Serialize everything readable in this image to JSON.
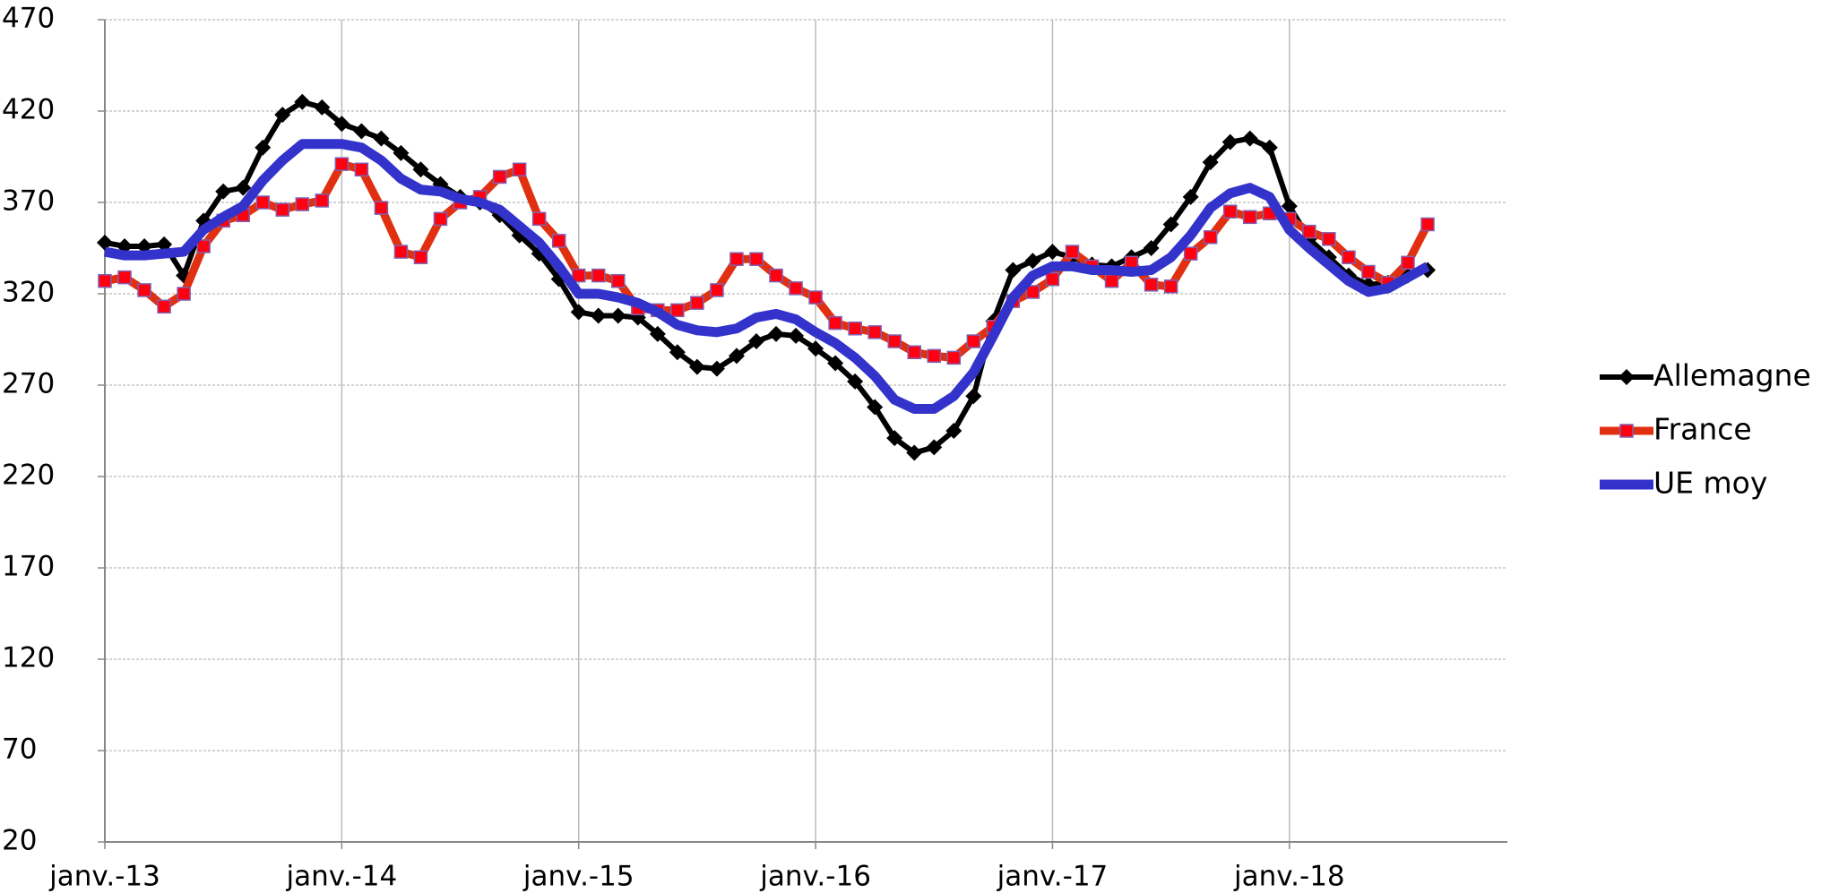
{
  "chart_data": {
    "type": "line",
    "categories": [
      "janv.-13",
      null,
      null,
      null,
      null,
      null,
      null,
      null,
      null,
      null,
      null,
      null,
      "janv.-14",
      null,
      null,
      null,
      null,
      null,
      null,
      null,
      null,
      null,
      null,
      null,
      "janv.-15",
      null,
      null,
      null,
      null,
      null,
      null,
      null,
      null,
      null,
      null,
      null,
      "janv.-16",
      null,
      null,
      null,
      null,
      null,
      null,
      null,
      null,
      null,
      null,
      null,
      "janv.-17",
      null,
      null,
      null,
      null,
      null,
      null,
      null,
      null,
      null,
      null,
      null,
      "janv.-18",
      null,
      null,
      null,
      null,
      null,
      null,
      null
    ],
    "series": [
      {
        "name": "Allemagne",
        "color": "#000000",
        "marker": "diamond",
        "values": [
          348,
          346,
          346,
          347,
          330,
          360,
          376,
          378,
          400,
          418,
          425,
          422,
          413,
          409,
          405,
          397,
          388,
          380,
          373,
          370,
          363,
          352,
          342,
          328,
          310,
          308,
          308,
          307,
          298,
          288,
          280,
          279,
          286,
          294,
          298,
          297,
          290,
          282,
          272,
          258,
          241,
          233,
          236,
          245,
          264,
          305,
          333,
          338,
          343,
          340,
          336,
          335,
          340,
          345,
          358,
          373,
          392,
          403,
          405,
          400,
          368,
          350,
          340,
          330,
          325,
          326,
          330,
          333
        ]
      },
      {
        "name": "France",
        "color": "#e03010",
        "marker": "square",
        "marker_color": "#ff0010",
        "values": [
          327,
          329,
          322,
          313,
          320,
          346,
          360,
          363,
          370,
          366,
          369,
          371,
          391,
          388,
          367,
          343,
          340,
          361,
          370,
          373,
          384,
          388,
          361,
          349,
          330,
          330,
          327,
          312,
          311,
          311,
          315,
          322,
          339,
          339,
          330,
          323,
          318,
          304,
          301,
          299,
          294,
          288,
          286,
          285,
          294,
          302,
          316,
          321,
          328,
          343,
          335,
          327,
          337,
          325,
          324,
          342,
          351,
          365,
          362,
          364,
          361,
          354,
          350,
          340,
          332,
          326,
          337,
          358
        ]
      },
      {
        "name": "UE moy",
        "color": "#3333cc",
        "marker": "none",
        "values": [
          343,
          341,
          341,
          342,
          343,
          355,
          362,
          368,
          382,
          393,
          402,
          402,
          402,
          400,
          393,
          383,
          377,
          376,
          372,
          370,
          366,
          357,
          348,
          335,
          320,
          320,
          318,
          315,
          310,
          303,
          300,
          299,
          301,
          307,
          309,
          306,
          299,
          293,
          285,
          275,
          262,
          257,
          257,
          264,
          277,
          297,
          318,
          330,
          335,
          335,
          333,
          333,
          332,
          333,
          340,
          352,
          367,
          375,
          378,
          373,
          355,
          345,
          336,
          327,
          321,
          323,
          329,
          335
        ]
      }
    ],
    "ylim": [
      20,
      470
    ],
    "yticks": [
      20,
      70,
      120,
      170,
      220,
      270,
      320,
      370,
      420,
      470
    ],
    "grid": true,
    "legend": "right"
  }
}
